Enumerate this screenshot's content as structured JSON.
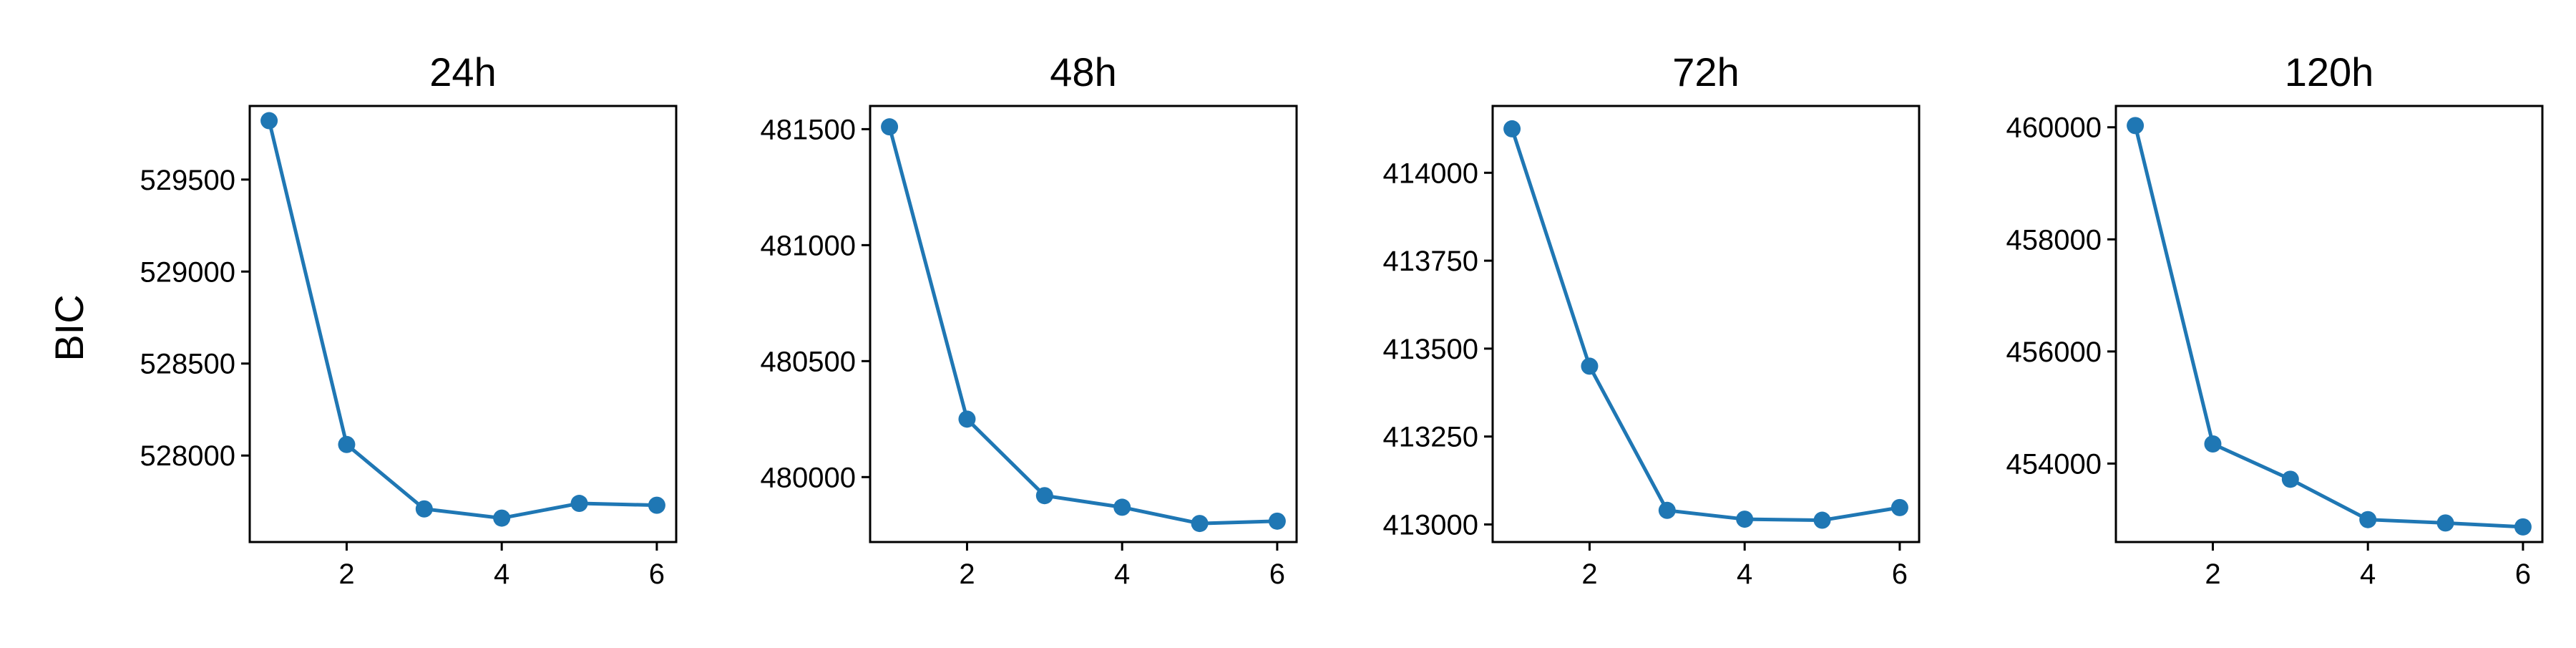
{
  "figure": {
    "ylabel": "BIC"
  },
  "chart_data": [
    {
      "type": "line",
      "title": "24h",
      "ylabel": "BIC",
      "xlabel": "",
      "x": [
        1,
        2,
        3,
        4,
        5,
        6
      ],
      "xticks": [
        2,
        4,
        6
      ],
      "xlim": [
        0.75,
        6.25
      ],
      "yticks": [
        528000,
        528500,
        529000,
        529500
      ],
      "ylim": [
        527530,
        529900
      ],
      "series": [
        {
          "values": [
            529820,
            528060,
            527710,
            527660,
            527740,
            527730
          ],
          "color": "#1f77b4"
        }
      ]
    },
    {
      "type": "line",
      "title": "48h",
      "ylabel": "",
      "xlabel": "",
      "x": [
        1,
        2,
        3,
        4,
        5,
        6
      ],
      "xticks": [
        2,
        4,
        6
      ],
      "xlim": [
        0.75,
        6.25
      ],
      "yticks": [
        480000,
        480500,
        481000,
        481500
      ],
      "ylim": [
        479720,
        481600
      ],
      "series": [
        {
          "values": [
            481510,
            480250,
            479920,
            479870,
            479800,
            479810
          ],
          "color": "#1f77b4"
        }
      ]
    },
    {
      "type": "line",
      "title": "72h",
      "ylabel": "",
      "xlabel": "",
      "x": [
        1,
        2,
        3,
        4,
        5,
        6
      ],
      "xticks": [
        2,
        4,
        6
      ],
      "xlim": [
        0.75,
        6.25
      ],
      "yticks": [
        413000,
        413250,
        413500,
        413750,
        414000
      ],
      "ylim": [
        412950,
        414190
      ],
      "series": [
        {
          "values": [
            414125,
            413450,
            413040,
            413015,
            413012,
            413048
          ],
          "color": "#1f77b4"
        }
      ]
    },
    {
      "type": "line",
      "title": "120h",
      "ylabel": "",
      "xlabel": "",
      "x": [
        1,
        2,
        3,
        4,
        5,
        6
      ],
      "xticks": [
        2,
        4,
        6
      ],
      "xlim": [
        0.75,
        6.25
      ],
      "yticks": [
        454000,
        456000,
        458000,
        460000
      ],
      "ylim": [
        452600,
        460380
      ],
      "series": [
        {
          "values": [
            460030,
            454350,
            453720,
            453000,
            452940,
            452870
          ],
          "color": "#1f77b4"
        }
      ]
    }
  ]
}
